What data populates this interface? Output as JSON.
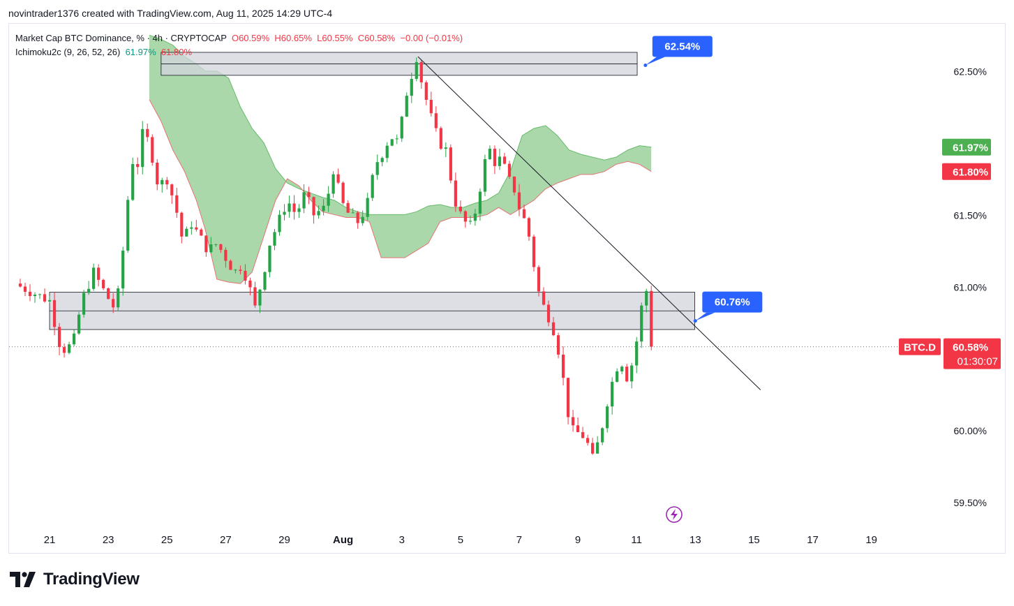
{
  "header": {
    "caption": "novintrader1376 created with TradingView.com, Aug 11, 2025 14:29 UTC-4"
  },
  "legend": {
    "symbol": "Market Cap BTC Dominance, % · 4h · CRYPTOCAP",
    "open": "O60.59%",
    "high": "H60.65%",
    "low": "L60.55%",
    "close": "C60.58%",
    "change": "−0.00 (−0.01%)",
    "indicator": "Ichimoku2c (9, 26, 52, 26)",
    "ind_value_1": "61.97%",
    "ind_value_2": "61.80%"
  },
  "colors": {
    "up": "#26a346",
    "down": "#f23645",
    "cloud": "#a5d6a7",
    "cloud_edge": "#e57373",
    "zone": "#d1d4dc",
    "callout": "#2962ff",
    "green_label": "#4caf50",
    "red_label": "#f23645"
  },
  "footer": {
    "brand": "TradingView"
  },
  "chart_data": {
    "type": "candlestick",
    "title": "Market Cap BTC Dominance, % · 4h · CRYPTOCAP",
    "x_unit": "days since Jul 20, 2025 00:00",
    "xlim": [
      19.62,
      50.22
    ],
    "ylim": [
      59.3,
      62.8
    ],
    "x_tick_labels": [
      {
        "x": 21,
        "label": "21"
      },
      {
        "x": 23,
        "label": "23"
      },
      {
        "x": 25,
        "label": "25"
      },
      {
        "x": 27,
        "label": "27"
      },
      {
        "x": 29,
        "label": "29"
      },
      {
        "x": 31,
        "label": "Aug"
      },
      {
        "x": 33,
        "label": "3"
      },
      {
        "x": 35,
        "label": "5"
      },
      {
        "x": 37,
        "label": "7"
      },
      {
        "x": 39,
        "label": "9"
      },
      {
        "x": 41,
        "label": "11"
      },
      {
        "x": 43,
        "label": "13"
      },
      {
        "x": 45,
        "label": "15"
      },
      {
        "x": 47,
        "label": "17"
      },
      {
        "x": 49,
        "label": "19"
      }
    ],
    "y_ticks": [
      {
        "value": 62.5,
        "label": "62.50%"
      },
      {
        "value": 61.5,
        "label": "61.50%"
      },
      {
        "value": 61.0,
        "label": "61.00%"
      },
      {
        "value": 60.0,
        "label": "60.00%"
      },
      {
        "value": 59.5,
        "label": "59.50%"
      }
    ],
    "close_path": [
      [
        20.0,
        61.0
      ],
      [
        20.5,
        60.95
      ],
      [
        21.0,
        60.9
      ],
      [
        21.4,
        60.55
      ],
      [
        21.8,
        60.6
      ],
      [
        22.1,
        60.9
      ],
      [
        22.5,
        61.1
      ],
      [
        22.9,
        60.95
      ],
      [
        23.2,
        60.85
      ],
      [
        23.4,
        61.0
      ],
      [
        23.6,
        61.5
      ],
      [
        23.85,
        61.9
      ],
      [
        24.0,
        61.85
      ],
      [
        24.2,
        62.1
      ],
      [
        24.45,
        61.95
      ],
      [
        24.7,
        61.7
      ],
      [
        25.0,
        61.75
      ],
      [
        25.3,
        61.55
      ],
      [
        25.55,
        61.3
      ],
      [
        25.8,
        61.45
      ],
      [
        26.1,
        61.35
      ],
      [
        26.4,
        61.25
      ],
      [
        26.7,
        61.3
      ],
      [
        27.0,
        61.2
      ],
      [
        27.3,
        61.1
      ],
      [
        27.55,
        61.15
      ],
      [
        27.8,
        61.0
      ],
      [
        28.0,
        60.85
      ],
      [
        28.3,
        61.1
      ],
      [
        28.5,
        61.3
      ],
      [
        28.8,
        61.45
      ],
      [
        29.1,
        61.6
      ],
      [
        29.4,
        61.5
      ],
      [
        29.7,
        61.65
      ],
      [
        30.0,
        61.5
      ],
      [
        30.4,
        61.55
      ],
      [
        30.7,
        61.85
      ],
      [
        30.9,
        61.6
      ],
      [
        31.2,
        61.5
      ],
      [
        31.5,
        61.45
      ],
      [
        31.8,
        61.55
      ],
      [
        32.1,
        61.85
      ],
      [
        32.4,
        61.95
      ],
      [
        32.6,
        62.05
      ],
      [
        32.9,
        62.0
      ],
      [
        33.1,
        62.3
      ],
      [
        33.3,
        62.45
      ],
      [
        33.5,
        62.6
      ],
      [
        33.7,
        62.4
      ],
      [
        33.9,
        62.25
      ],
      [
        34.1,
        62.1
      ],
      [
        34.3,
        62.0
      ],
      [
        34.5,
        61.95
      ],
      [
        34.8,
        61.6
      ],
      [
        35.0,
        61.5
      ],
      [
        35.3,
        61.4
      ],
      [
        35.55,
        61.55
      ],
      [
        35.8,
        61.85
      ],
      [
        36.0,
        61.95
      ],
      [
        36.2,
        61.85
      ],
      [
        36.4,
        61.9
      ],
      [
        36.6,
        61.75
      ],
      [
        36.8,
        61.7
      ],
      [
        37.0,
        61.55
      ],
      [
        37.2,
        61.45
      ],
      [
        37.4,
        61.3
      ],
      [
        37.6,
        61.0
      ],
      [
        37.85,
        60.85
      ],
      [
        38.1,
        60.75
      ],
      [
        38.3,
        60.6
      ],
      [
        38.5,
        60.35
      ],
      [
        38.75,
        60.0
      ],
      [
        39.0,
        59.98
      ],
      [
        39.25,
        59.95
      ],
      [
        39.5,
        59.8
      ],
      [
        39.75,
        59.95
      ],
      [
        40.0,
        60.2
      ],
      [
        40.25,
        60.4
      ],
      [
        40.45,
        60.5
      ],
      [
        40.7,
        60.35
      ],
      [
        40.95,
        60.55
      ],
      [
        41.2,
        60.9
      ],
      [
        41.35,
        60.98
      ],
      [
        41.5,
        60.6
      ],
      [
        41.58,
        60.58
      ]
    ],
    "candle_count_approx": 130,
    "last_price": {
      "value": 60.58,
      "label": "60.58%",
      "ticker": "BTC.D",
      "countdown": "01:30:07"
    },
    "ichimoku": {
      "span_a_label": "61.97%",
      "span_b_label": "61.80%",
      "span_a_value": 61.97,
      "span_b_value": 61.8,
      "cloud_top": [
        [
          24.4,
          62.75
        ],
        [
          24.8,
          62.72
        ],
        [
          25.2,
          62.68
        ],
        [
          25.6,
          62.6
        ],
        [
          26.0,
          62.55
        ],
        [
          26.3,
          62.5
        ],
        [
          26.7,
          62.5
        ],
        [
          27.1,
          62.45
        ],
        [
          27.5,
          62.25
        ],
        [
          27.9,
          62.1
        ],
        [
          28.3,
          62.0
        ],
        [
          28.7,
          61.82
        ],
        [
          29.1,
          61.72
        ],
        [
          29.5,
          61.68
        ],
        [
          29.9,
          61.65
        ],
        [
          30.3,
          61.62
        ],
        [
          30.7,
          61.6
        ],
        [
          31.1,
          61.55
        ],
        [
          31.5,
          61.52
        ],
        [
          31.9,
          61.5
        ],
        [
          32.3,
          61.5
        ],
        [
          32.7,
          61.5
        ],
        [
          33.1,
          61.5
        ],
        [
          33.5,
          61.52
        ],
        [
          33.9,
          61.56
        ],
        [
          34.3,
          61.57
        ],
        [
          34.7,
          61.55
        ],
        [
          35.1,
          61.55
        ],
        [
          35.5,
          61.58
        ],
        [
          35.9,
          61.6
        ],
        [
          36.3,
          61.65
        ],
        [
          36.7,
          61.8
        ],
        [
          37.1,
          62.05
        ],
        [
          37.5,
          62.1
        ],
        [
          37.9,
          62.12
        ],
        [
          38.3,
          62.05
        ],
        [
          38.7,
          61.95
        ],
        [
          39.1,
          61.92
        ],
        [
          39.5,
          61.9
        ],
        [
          39.9,
          61.88
        ],
        [
          40.3,
          61.9
        ],
        [
          40.7,
          61.95
        ],
        [
          41.1,
          61.98
        ],
        [
          41.5,
          61.97
        ]
      ],
      "cloud_bottom": [
        [
          24.4,
          62.3
        ],
        [
          24.8,
          62.15
        ],
        [
          25.2,
          61.95
        ],
        [
          25.6,
          61.8
        ],
        [
          26.0,
          61.6
        ],
        [
          26.3,
          61.4
        ],
        [
          26.7,
          61.05
        ],
        [
          27.1,
          61.03
        ],
        [
          27.5,
          61.02
        ],
        [
          27.9,
          61.1
        ],
        [
          28.3,
          61.35
        ],
        [
          28.7,
          61.6
        ],
        [
          29.1,
          61.75
        ],
        [
          29.5,
          61.7
        ],
        [
          29.9,
          61.6
        ],
        [
          30.3,
          61.52
        ],
        [
          30.7,
          61.5
        ],
        [
          31.1,
          61.48
        ],
        [
          31.5,
          61.48
        ],
        [
          31.9,
          61.45
        ],
        [
          32.3,
          61.2
        ],
        [
          32.7,
          61.2
        ],
        [
          33.1,
          61.2
        ],
        [
          33.5,
          61.25
        ],
        [
          33.9,
          61.3
        ],
        [
          34.3,
          61.45
        ],
        [
          34.7,
          61.48
        ],
        [
          35.1,
          61.48
        ],
        [
          35.5,
          61.48
        ],
        [
          35.9,
          61.5
        ],
        [
          36.3,
          61.55
        ],
        [
          36.7,
          61.5
        ],
        [
          37.1,
          61.55
        ],
        [
          37.5,
          61.6
        ],
        [
          37.9,
          61.68
        ],
        [
          38.3,
          61.72
        ],
        [
          38.7,
          61.75
        ],
        [
          39.1,
          61.78
        ],
        [
          39.5,
          61.78
        ],
        [
          39.9,
          61.8
        ],
        [
          40.3,
          61.85
        ],
        [
          40.7,
          61.87
        ],
        [
          41.1,
          61.85
        ],
        [
          41.5,
          61.8
        ]
      ]
    },
    "zones": [
      {
        "name": "resistance",
        "x1": 24.8,
        "x2": 41.02,
        "y_low": 62.47,
        "y_high": 62.63,
        "mid": 62.55
      },
      {
        "name": "support",
        "x1": 21.0,
        "x2": 42.98,
        "y_low": 60.7,
        "y_high": 60.96,
        "mid": 60.83
      }
    ],
    "trendline": {
      "from": [
        33.55,
        62.6
      ],
      "to": [
        45.22,
        60.28
      ]
    },
    "callouts": [
      {
        "label": "62.54%",
        "value": 62.54,
        "anchor_x": 41.3
      },
      {
        "label": "60.76%",
        "value": 60.76,
        "anchor_x": 43.0
      }
    ]
  }
}
